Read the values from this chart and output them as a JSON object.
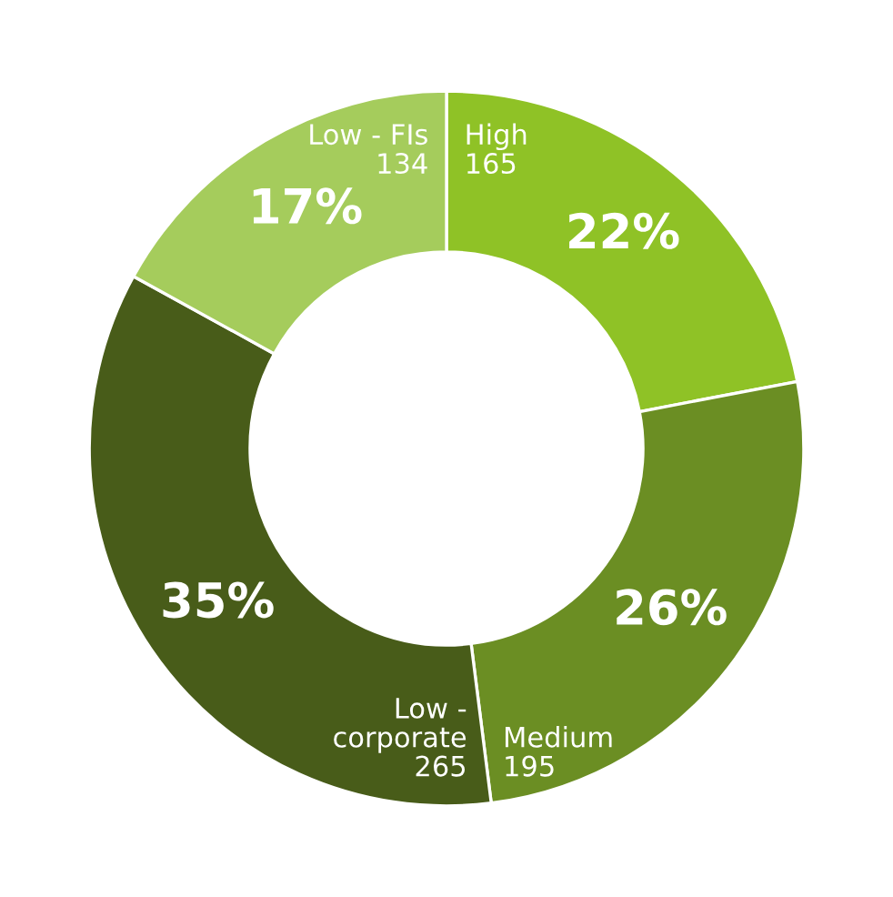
{
  "chart_data": {
    "type": "donut",
    "categories": [
      "High",
      "Medium",
      "Low - corporate",
      "Low - FIs"
    ],
    "values": [
      22,
      26,
      35,
      17
    ],
    "colors": [
      "#8fc226",
      "#6b8e23",
      "#485c19",
      "#a5cc5c"
    ],
    "value_labels": [
      "22%",
      "26%",
      "35%",
      "17%"
    ],
    "annotations": [
      "165",
      "195",
      "265",
      "134"
    ],
    "legend": false
  }
}
